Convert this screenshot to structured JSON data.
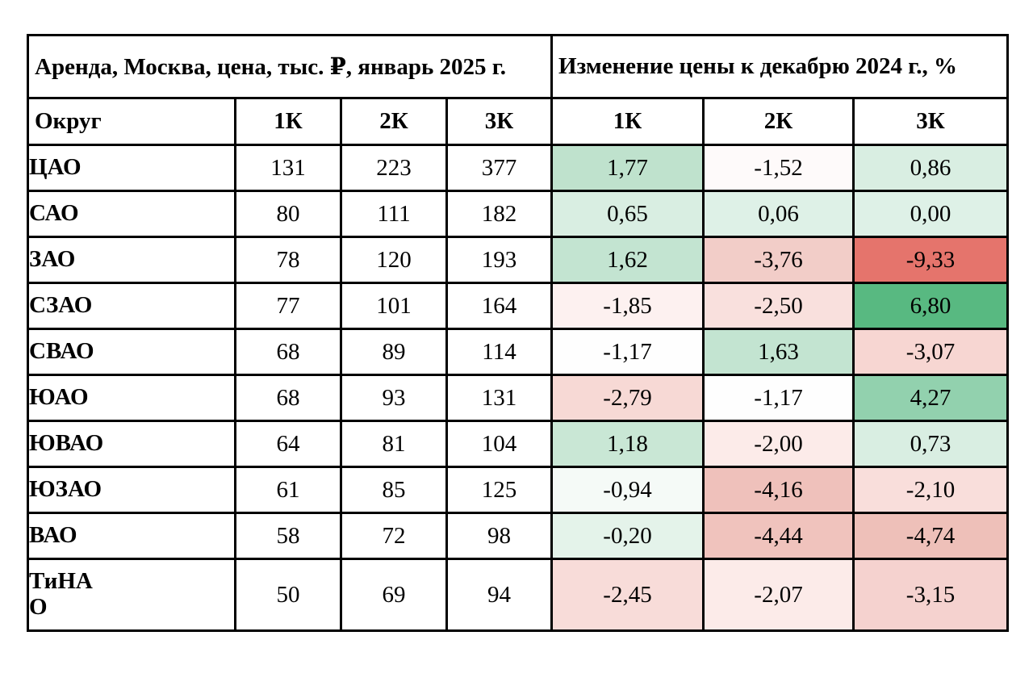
{
  "table": {
    "section_left_title": "Аренда, Москва, цена, тыс. ₽, январь 2025 г.",
    "section_right_title": "Изменение цены к декабрю 2024 г., %",
    "col_district": "Округ",
    "price_cols": [
      "1К",
      "2К",
      "3К"
    ],
    "change_cols": [
      "1К",
      "2К",
      "3К"
    ],
    "rows": [
      {
        "district": "ЦАО",
        "prices": [
          "131",
          "223",
          "377"
        ],
        "changes": [
          "1,77",
          "-1,52",
          "0,86"
        ],
        "change_colors": [
          "#bfe2cd",
          "#fefafa",
          "#d9eee2"
        ]
      },
      {
        "district": "САО",
        "prices": [
          "80",
          "111",
          "182"
        ],
        "changes": [
          "0,65",
          "0,06",
          "0,00"
        ],
        "change_colors": [
          "#d9eee2",
          "#def1e7",
          "#def1e7"
        ]
      },
      {
        "district": "ЗАО",
        "prices": [
          "78",
          "120",
          "193"
        ],
        "changes": [
          "1,62",
          "-3,76",
          "-9,33"
        ],
        "change_colors": [
          "#c3e4d1",
          "#f2cdc8",
          "#e5746c"
        ]
      },
      {
        "district": "СЗАО",
        "prices": [
          "77",
          "101",
          "164"
        ],
        "changes": [
          "-1,85",
          "-2,50",
          "6,80"
        ],
        "change_colors": [
          "#fdf1f0",
          "#f9e0dd",
          "#58b981"
        ]
      },
      {
        "district": "СВАО",
        "prices": [
          "68",
          "89",
          "114"
        ],
        "changes": [
          "-1,17",
          "1,63",
          "-3,07"
        ],
        "change_colors": [
          "#fefefe",
          "#c3e4d1",
          "#f7d6d2"
        ]
      },
      {
        "district": "ЮАО",
        "prices": [
          "68",
          "93",
          "131"
        ],
        "changes": [
          "-2,79",
          "-1,17",
          "4,27"
        ],
        "change_colors": [
          "#f7d9d5",
          "#fefefe",
          "#92d1ae"
        ]
      },
      {
        "district": "ЮВАО",
        "prices": [
          "64",
          "81",
          "104"
        ],
        "changes": [
          "1,18",
          "-2,00",
          "0,73"
        ],
        "change_colors": [
          "#c9e7d5",
          "#fcebe9",
          "#d9eee2"
        ]
      },
      {
        "district": "ЮЗАО",
        "prices": [
          "61",
          "85",
          "125"
        ],
        "changes": [
          "-0,94",
          "-4,16",
          "-2,10"
        ],
        "change_colors": [
          "#f5faf7",
          "#efc1bb",
          "#f9dedb"
        ]
      },
      {
        "district": "ВАО",
        "prices": [
          "58",
          "72",
          "98"
        ],
        "changes": [
          "-0,20",
          "-4,44",
          "-4,74"
        ],
        "change_colors": [
          "#e4f3ea",
          "#f0c3bd",
          "#eec0b9"
        ]
      },
      {
        "district": "ТиНАО",
        "district_display": "ТиНА\nО",
        "tall": true,
        "prices": [
          "50",
          "69",
          "94"
        ],
        "changes": [
          "-2,45",
          "-2,07",
          "-3,15"
        ],
        "change_colors": [
          "#f8dcd9",
          "#fcebe9",
          "#f5d2cf"
        ]
      }
    ]
  },
  "chart_data": {
    "type": "table",
    "title": "Аренда, Москва, цена, тыс. ₽, январь 2025 г. / Изменение цены к декабрю 2024 г., %",
    "row_header": "Округ",
    "columns": [
      "1К цена",
      "2К цена",
      "3К цена",
      "1К изменение %",
      "2К изменение %",
      "3К изменение %"
    ],
    "rows": [
      {
        "district": "ЦАО",
        "price_1k": 131,
        "price_2k": 223,
        "price_3k": 377,
        "chg_1k": 1.77,
        "chg_2k": -1.52,
        "chg_3k": 0.86
      },
      {
        "district": "САО",
        "price_1k": 80,
        "price_2k": 111,
        "price_3k": 182,
        "chg_1k": 0.65,
        "chg_2k": 0.06,
        "chg_3k": 0.0
      },
      {
        "district": "ЗАО",
        "price_1k": 78,
        "price_2k": 120,
        "price_3k": 193,
        "chg_1k": 1.62,
        "chg_2k": -3.76,
        "chg_3k": -9.33
      },
      {
        "district": "СЗАО",
        "price_1k": 77,
        "price_2k": 101,
        "price_3k": 164,
        "chg_1k": -1.85,
        "chg_2k": -2.5,
        "chg_3k": 6.8
      },
      {
        "district": "СВАО",
        "price_1k": 68,
        "price_2k": 89,
        "price_3k": 114,
        "chg_1k": -1.17,
        "chg_2k": 1.63,
        "chg_3k": -3.07
      },
      {
        "district": "ЮАО",
        "price_1k": 68,
        "price_2k": 93,
        "price_3k": 131,
        "chg_1k": -2.79,
        "chg_2k": -1.17,
        "chg_3k": 4.27
      },
      {
        "district": "ЮВАО",
        "price_1k": 64,
        "price_2k": 81,
        "price_3k": 104,
        "chg_1k": 1.18,
        "chg_2k": -2.0,
        "chg_3k": 0.73
      },
      {
        "district": "ЮЗАО",
        "price_1k": 61,
        "price_2k": 85,
        "price_3k": 125,
        "chg_1k": -0.94,
        "chg_2k": -4.16,
        "chg_3k": -2.1
      },
      {
        "district": "ВАО",
        "price_1k": 58,
        "price_2k": 72,
        "price_3k": 98,
        "chg_1k": -0.2,
        "chg_2k": -4.44,
        "chg_3k": -4.74
      },
      {
        "district": "ТиНАО",
        "price_1k": 50,
        "price_2k": 69,
        "price_3k": 94,
        "chg_1k": -2.45,
        "chg_2k": -2.07,
        "chg_3k": -3.15
      }
    ],
    "color_coding": {
      "positive_change": "green shades, darker = larger increase",
      "negative_change": "red/pink shades, darker = larger decrease",
      "max_green": "#58b981",
      "max_red": "#e5746c",
      "neutral": "#ffffff"
    }
  }
}
